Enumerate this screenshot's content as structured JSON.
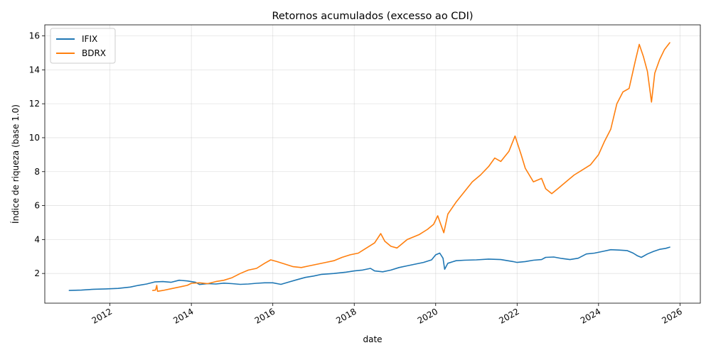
{
  "chart_data": {
    "type": "line",
    "title": "Retornos acumulados (excesso ao CDI)",
    "xlabel": "date",
    "ylabel": "Índice de riqueza (base 1.0)",
    "xlim": [
      2010.4,
      2026.5
    ],
    "ylim": [
      0.25,
      16.65
    ],
    "x_ticks": [
      2012,
      2014,
      2016,
      2018,
      2020,
      2022,
      2024,
      2026
    ],
    "y_ticks": [
      2,
      4,
      6,
      8,
      10,
      12,
      14,
      16
    ],
    "grid": true,
    "legend_position": "top-left",
    "series": [
      {
        "name": "IFIX",
        "color": "#1f77b4",
        "points": [
          [
            2011.0,
            1.0
          ],
          [
            2011.3,
            1.02
          ],
          [
            2011.6,
            1.07
          ],
          [
            2011.9,
            1.09
          ],
          [
            2012.2,
            1.12
          ],
          [
            2012.5,
            1.2
          ],
          [
            2012.7,
            1.3
          ],
          [
            2012.9,
            1.38
          ],
          [
            2013.1,
            1.5
          ],
          [
            2013.3,
            1.52
          ],
          [
            2013.5,
            1.48
          ],
          [
            2013.7,
            1.6
          ],
          [
            2013.9,
            1.56
          ],
          [
            2014.1,
            1.48
          ],
          [
            2014.2,
            1.35
          ],
          [
            2014.4,
            1.4
          ],
          [
            2014.6,
            1.38
          ],
          [
            2014.8,
            1.43
          ],
          [
            2015.0,
            1.4
          ],
          [
            2015.2,
            1.36
          ],
          [
            2015.4,
            1.38
          ],
          [
            2015.6,
            1.42
          ],
          [
            2015.8,
            1.45
          ],
          [
            2016.0,
            1.45
          ],
          [
            2016.2,
            1.36
          ],
          [
            2016.4,
            1.5
          ],
          [
            2016.6,
            1.64
          ],
          [
            2016.8,
            1.77
          ],
          [
            2017.0,
            1.85
          ],
          [
            2017.2,
            1.95
          ],
          [
            2017.5,
            2.0
          ],
          [
            2017.8,
            2.08
          ],
          [
            2018.0,
            2.15
          ],
          [
            2018.2,
            2.2
          ],
          [
            2018.4,
            2.3
          ],
          [
            2018.5,
            2.15
          ],
          [
            2018.7,
            2.1
          ],
          [
            2018.9,
            2.2
          ],
          [
            2019.1,
            2.35
          ],
          [
            2019.3,
            2.45
          ],
          [
            2019.5,
            2.55
          ],
          [
            2019.7,
            2.65
          ],
          [
            2019.9,
            2.8
          ],
          [
            2020.0,
            3.1
          ],
          [
            2020.1,
            3.2
          ],
          [
            2020.18,
            2.9
          ],
          [
            2020.22,
            2.25
          ],
          [
            2020.3,
            2.6
          ],
          [
            2020.5,
            2.75
          ],
          [
            2020.7,
            2.78
          ],
          [
            2021.0,
            2.8
          ],
          [
            2021.3,
            2.85
          ],
          [
            2021.6,
            2.82
          ],
          [
            2021.9,
            2.7
          ],
          [
            2022.0,
            2.65
          ],
          [
            2022.2,
            2.7
          ],
          [
            2022.4,
            2.78
          ],
          [
            2022.6,
            2.82
          ],
          [
            2022.7,
            2.95
          ],
          [
            2022.9,
            2.97
          ],
          [
            2023.1,
            2.88
          ],
          [
            2023.3,
            2.82
          ],
          [
            2023.5,
            2.9
          ],
          [
            2023.7,
            3.15
          ],
          [
            2023.9,
            3.2
          ],
          [
            2024.1,
            3.3
          ],
          [
            2024.3,
            3.4
          ],
          [
            2024.5,
            3.38
          ],
          [
            2024.7,
            3.35
          ],
          [
            2024.85,
            3.2
          ],
          [
            2024.95,
            3.05
          ],
          [
            2025.05,
            2.95
          ],
          [
            2025.2,
            3.15
          ],
          [
            2025.35,
            3.3
          ],
          [
            2025.5,
            3.42
          ],
          [
            2025.65,
            3.48
          ],
          [
            2025.75,
            3.55
          ]
        ]
      },
      {
        "name": "BDRX",
        "color": "#ff7f0e",
        "points": [
          [
            2013.05,
            1.0
          ],
          [
            2013.12,
            1.02
          ],
          [
            2013.15,
            1.3
          ],
          [
            2013.17,
            0.95
          ],
          [
            2013.3,
            1.0
          ],
          [
            2013.5,
            1.1
          ],
          [
            2013.7,
            1.2
          ],
          [
            2013.9,
            1.3
          ],
          [
            2014.0,
            1.42
          ],
          [
            2014.2,
            1.45
          ],
          [
            2014.4,
            1.4
          ],
          [
            2014.6,
            1.52
          ],
          [
            2014.8,
            1.6
          ],
          [
            2015.0,
            1.75
          ],
          [
            2015.2,
            2.0
          ],
          [
            2015.4,
            2.2
          ],
          [
            2015.6,
            2.3
          ],
          [
            2015.8,
            2.6
          ],
          [
            2015.95,
            2.8
          ],
          [
            2016.1,
            2.7
          ],
          [
            2016.3,
            2.55
          ],
          [
            2016.5,
            2.4
          ],
          [
            2016.7,
            2.35
          ],
          [
            2016.9,
            2.45
          ],
          [
            2017.1,
            2.55
          ],
          [
            2017.3,
            2.65
          ],
          [
            2017.5,
            2.75
          ],
          [
            2017.7,
            2.95
          ],
          [
            2017.9,
            3.1
          ],
          [
            2018.1,
            3.2
          ],
          [
            2018.3,
            3.5
          ],
          [
            2018.5,
            3.8
          ],
          [
            2018.65,
            4.35
          ],
          [
            2018.75,
            3.9
          ],
          [
            2018.9,
            3.6
          ],
          [
            2019.05,
            3.5
          ],
          [
            2019.3,
            4.0
          ],
          [
            2019.6,
            4.3
          ],
          [
            2019.8,
            4.6
          ],
          [
            2019.95,
            4.9
          ],
          [
            2020.05,
            5.4
          ],
          [
            2020.2,
            4.4
          ],
          [
            2020.3,
            5.5
          ],
          [
            2020.5,
            6.2
          ],
          [
            2020.7,
            6.8
          ],
          [
            2020.9,
            7.4
          ],
          [
            2021.1,
            7.8
          ],
          [
            2021.3,
            8.3
          ],
          [
            2021.45,
            8.8
          ],
          [
            2021.6,
            8.6
          ],
          [
            2021.8,
            9.2
          ],
          [
            2021.95,
            10.1
          ],
          [
            2022.1,
            9.0
          ],
          [
            2022.2,
            8.2
          ],
          [
            2022.4,
            7.4
          ],
          [
            2022.6,
            7.6
          ],
          [
            2022.7,
            7.0
          ],
          [
            2022.85,
            6.7
          ],
          [
            2023.0,
            7.0
          ],
          [
            2023.2,
            7.4
          ],
          [
            2023.4,
            7.8
          ],
          [
            2023.6,
            8.1
          ],
          [
            2023.8,
            8.4
          ],
          [
            2024.0,
            9.0
          ],
          [
            2024.15,
            9.8
          ],
          [
            2024.3,
            10.5
          ],
          [
            2024.45,
            12.0
          ],
          [
            2024.6,
            12.7
          ],
          [
            2024.75,
            12.9
          ],
          [
            2024.9,
            14.5
          ],
          [
            2025.0,
            15.5
          ],
          [
            2025.1,
            14.8
          ],
          [
            2025.2,
            13.9
          ],
          [
            2025.3,
            12.1
          ],
          [
            2025.38,
            13.8
          ],
          [
            2025.5,
            14.6
          ],
          [
            2025.62,
            15.2
          ],
          [
            2025.75,
            15.6
          ]
        ]
      }
    ]
  }
}
